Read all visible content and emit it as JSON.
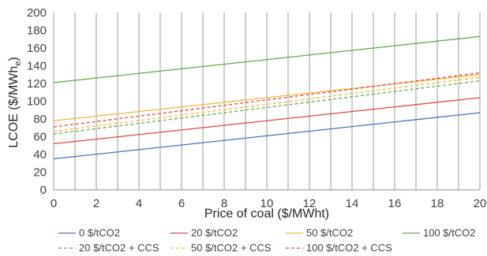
{
  "chart_data": {
    "type": "line",
    "xlabel": "Price of coal ($/MWht)",
    "ylabel": {
      "main": "LCOE ($/MWh",
      "sub": "e",
      "close": ")"
    },
    "xlim": [
      0,
      20
    ],
    "ylim": [
      0,
      200
    ],
    "xticks": [
      "0",
      "2",
      "4",
      "6",
      "8",
      "10",
      "12",
      "14",
      "16",
      "18",
      "20"
    ],
    "yticks": [
      "0",
      "20",
      "40",
      "60",
      "80",
      "100",
      "120",
      "140",
      "160",
      "180",
      "200"
    ],
    "grid": {
      "vertical": true,
      "horizontal": false
    },
    "legend_position": "bottom",
    "series": [
      {
        "name": "0 $/tCO2",
        "color": "#4472C4",
        "dashed": false,
        "x": [
          0,
          20
        ],
        "y": [
          35,
          87
        ]
      },
      {
        "name": "20 $/tCO2",
        "color": "#E0473E",
        "dashed": false,
        "x": [
          0,
          20
        ],
        "y": [
          52,
          104
        ]
      },
      {
        "name": "50 $/tCO2",
        "color": "#F4B63E",
        "dashed": false,
        "x": [
          0,
          20
        ],
        "y": [
          78,
          130
        ]
      },
      {
        "name": "100 $/tCO2",
        "color": "#5BAA47",
        "dashed": false,
        "x": [
          0,
          20
        ],
        "y": [
          121,
          173
        ]
      },
      {
        "name": "20 $/tCO2 + CCS",
        "color": "#5BAA47",
        "dashed": true,
        "x": [
          0,
          20
        ],
        "y": [
          63,
          123
        ]
      },
      {
        "name": "50 $/tCO2 + CCS",
        "color": "#F4B63E",
        "dashed": true,
        "x": [
          0,
          20
        ],
        "y": [
          66,
          127
        ]
      },
      {
        "name": "100 $/tCO2 + CCS",
        "color": "#E0473E",
        "dashed": true,
        "x": [
          0,
          20
        ],
        "y": [
          71,
          132
        ]
      }
    ]
  }
}
